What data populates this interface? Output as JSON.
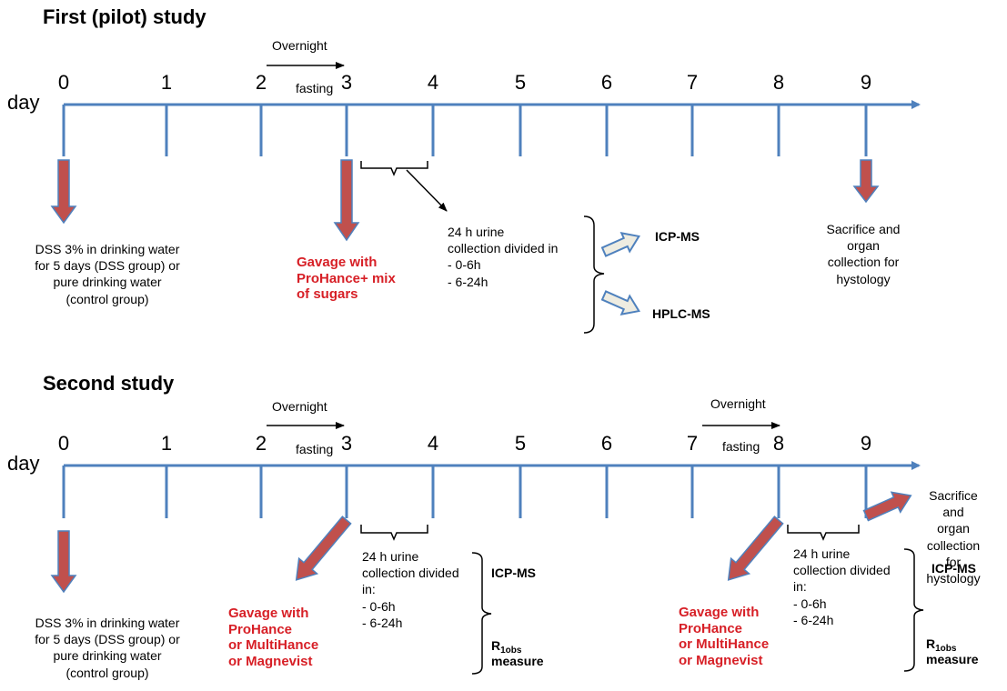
{
  "pilot": {
    "title": "First (pilot) study",
    "day_label": "day",
    "days": [
      "0",
      "1",
      "2",
      "3",
      "4",
      "5",
      "6",
      "7",
      "8",
      "9"
    ],
    "overnight": "Overnight",
    "fasting": "fasting",
    "dss_note": "DSS 3% in drinking water\nfor 5 days (DSS group) or\npure drinking water\n(control group)",
    "gavage": "Gavage with\nProHance+ mix\nof sugars",
    "urine": "24 h urine\ncollection divided in\n- 0-6h\n- 6-24h",
    "icpms": "ICP-MS",
    "hplcms": "HPLC-MS",
    "sacrifice": "Sacrifice and\norgan\ncollection for\nhystology"
  },
  "second": {
    "title": "Second study",
    "day_label": "day",
    "days": [
      "0",
      "1",
      "2",
      "3",
      "4",
      "5",
      "6",
      "7",
      "8",
      "9"
    ],
    "overnight_1": "Overnight",
    "fasting_1": "fasting",
    "overnight_2": "Overnight",
    "fasting_2": "fasting",
    "dss_note": "DSS 3% in drinking water\nfor 5 days (DSS group) or\npure drinking water\n(control group)",
    "gavage_1": "Gavage with\nProHance\nor MultiHance\nor Magnevist",
    "gavage_2": "Gavage with\nProHance\nor MultiHance\nor Magnevist",
    "urine_1": "24 h urine\ncollection divided\n in:\n- 0-6h\n- 6-24h",
    "urine_2": "24 h urine\ncollection divided\n in:\n- 0-6h\n- 6-24h",
    "icpms_1": "ICP-MS",
    "icpms_2": "ICP-MS",
    "r1_main": "R",
    "r1_sub": "1obs",
    "measure": "measure",
    "sacrifice": "Sacrifice and\norgan\ncollection for\nhystology"
  },
  "colors": {
    "timeline": "#4f81bd",
    "arrow_red": "#c0504d",
    "red_text": "#d71f26",
    "block_arrow_fill": "#eeece1",
    "block_arrow_stroke": "#4f81bd"
  }
}
